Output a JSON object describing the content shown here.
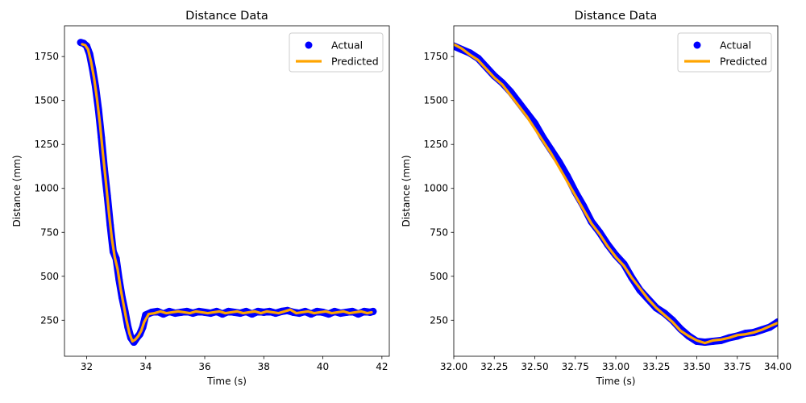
{
  "chart_data": [
    {
      "type": "scatter",
      "title": "Distance Data",
      "xlabel": "Time (s)",
      "ylabel": "Distance (mm)",
      "xlim": [
        31.25,
        42.25
      ],
      "ylim": [
        45,
        1925
      ],
      "xticks": [
        32,
        34,
        36,
        38,
        40,
        42
      ],
      "yticks": [
        250,
        500,
        750,
        1000,
        1250,
        1500,
        1750
      ],
      "xtick_labels": [
        "32",
        "34",
        "36",
        "38",
        "40",
        "42"
      ],
      "ytick_labels": [
        "250",
        "500",
        "750",
        "1000",
        "1250",
        "1500",
        "1750"
      ],
      "legend": {
        "placement": "top-right",
        "entries": [
          "Actual",
          "Predicted"
        ]
      },
      "grid": false,
      "series": [
        {
          "name": "Actual",
          "style": "points",
          "color": "#0000ff",
          "x": [
            31.8,
            31.9,
            32.0,
            32.1,
            32.2,
            32.3,
            32.4,
            32.5,
            32.6,
            32.7,
            32.8,
            32.9,
            33.0,
            33.1,
            33.2,
            33.3,
            33.4,
            33.5,
            33.6,
            33.7,
            33.8,
            33.9,
            34.0,
            34.2,
            34.4,
            34.6,
            34.8,
            35.0,
            35.2,
            35.4,
            35.6,
            35.8,
            36.0,
            36.2,
            36.4,
            36.6,
            36.8,
            37.0,
            37.2,
            37.4,
            37.6,
            37.8,
            38.0,
            38.2,
            38.4,
            38.6,
            38.8,
            39.0,
            39.2,
            39.4,
            39.6,
            39.8,
            40.0,
            40.2,
            40.4,
            40.6,
            40.8,
            41.0,
            41.2,
            41.4,
            41.6,
            41.7
          ],
          "y": [
            1830,
            1825,
            1810,
            1765,
            1680,
            1580,
            1450,
            1290,
            1110,
            960,
            790,
            640,
            600,
            480,
            380,
            300,
            210,
            150,
            125,
            150,
            170,
            210,
            280,
            295,
            300,
            285,
            300,
            290,
            295,
            300,
            290,
            300,
            295,
            290,
            300,
            285,
            300,
            295,
            290,
            300,
            285,
            300,
            295,
            300,
            290,
            300,
            305,
            295,
            290,
            300,
            285,
            300,
            295,
            285,
            300,
            290,
            295,
            300,
            285,
            300,
            295,
            300
          ]
        },
        {
          "name": "Predicted",
          "style": "line",
          "color": "#ffa500",
          "x": [
            31.85,
            31.95,
            32.05,
            32.15,
            32.25,
            32.35,
            32.45,
            32.55,
            32.65,
            32.75,
            32.85,
            32.95,
            33.05,
            33.15,
            33.25,
            33.35,
            33.45,
            33.55,
            33.65,
            33.75,
            33.85,
            33.95,
            34.1,
            34.3,
            34.5,
            34.7,
            34.9,
            35.1,
            35.3,
            35.5,
            35.7,
            35.9,
            36.1,
            36.3,
            36.5,
            36.7,
            36.9,
            37.1,
            37.3,
            37.5,
            37.7,
            37.9,
            38.1,
            38.3,
            38.5,
            38.7,
            38.9,
            39.1,
            39.3,
            39.5,
            39.7,
            39.9,
            40.1,
            40.3,
            40.5,
            40.7,
            40.9,
            41.1,
            41.3,
            41.5,
            41.65
          ],
          "y": [
            1820,
            1815,
            1790,
            1720,
            1630,
            1510,
            1370,
            1200,
            1040,
            870,
            720,
            610,
            540,
            430,
            340,
            250,
            175,
            130,
            140,
            160,
            190,
            240,
            285,
            290,
            300,
            290,
            295,
            300,
            295,
            290,
            300,
            295,
            290,
            295,
            300,
            290,
            295,
            300,
            290,
            295,
            300,
            290,
            300,
            295,
            290,
            300,
            310,
            290,
            295,
            300,
            290,
            295,
            300,
            290,
            295,
            300,
            290,
            295,
            300,
            290,
            295
          ]
        }
      ]
    },
    {
      "type": "scatter",
      "title": "Distance Data",
      "xlabel": "Time (s)",
      "ylabel": "Distance (mm)",
      "xlim": [
        32.0,
        34.0
      ],
      "ylim": [
        45,
        1925
      ],
      "xticks": [
        32.0,
        32.25,
        32.5,
        32.75,
        33.0,
        33.25,
        33.5,
        33.75,
        34.0
      ],
      "yticks": [
        250,
        500,
        750,
        1000,
        1250,
        1500,
        1750
      ],
      "xtick_labels": [
        "32.00",
        "32.25",
        "32.50",
        "32.75",
        "33.00",
        "33.25",
        "33.50",
        "33.75",
        "34.00"
      ],
      "ytick_labels": [
        "250",
        "500",
        "750",
        "1000",
        "1250",
        "1500",
        "1750"
      ],
      "legend": {
        "placement": "top-right",
        "entries": [
          "Actual",
          "Predicted"
        ]
      },
      "grid": false,
      "series": [
        {
          "name": "Actual",
          "style": "points",
          "color": "#0000ff",
          "x": [
            32.0,
            32.05,
            32.1,
            32.15,
            32.2,
            32.25,
            32.3,
            32.35,
            32.4,
            32.45,
            32.5,
            32.55,
            32.6,
            32.65,
            32.7,
            32.75,
            32.8,
            32.85,
            32.9,
            32.95,
            33.0,
            33.05,
            33.1,
            33.15,
            33.2,
            33.25,
            33.3,
            33.35,
            33.4,
            33.45,
            33.5,
            33.55,
            33.6,
            33.65,
            33.7,
            33.75,
            33.8,
            33.85,
            33.9,
            33.95,
            34.0
          ],
          "y": [
            1810,
            1790,
            1770,
            1740,
            1690,
            1640,
            1600,
            1550,
            1490,
            1430,
            1370,
            1290,
            1220,
            1150,
            1070,
            980,
            900,
            810,
            750,
            680,
            620,
            570,
            490,
            420,
            370,
            320,
            290,
            250,
            200,
            160,
            130,
            125,
            130,
            135,
            150,
            160,
            175,
            180,
            195,
            210,
            240
          ]
        },
        {
          "name": "Predicted",
          "style": "line",
          "color": "#ffa500",
          "x": [
            32.0,
            32.05,
            32.1,
            32.15,
            32.2,
            32.25,
            32.3,
            32.35,
            32.4,
            32.45,
            32.5,
            32.55,
            32.6,
            32.65,
            32.7,
            32.75,
            32.8,
            32.85,
            32.9,
            32.95,
            33.0,
            33.05,
            33.1,
            33.15,
            33.2,
            33.25,
            33.3,
            33.35,
            33.4,
            33.45,
            33.5,
            33.55,
            33.6,
            33.65,
            33.7,
            33.75,
            33.8,
            33.85,
            33.9,
            33.95,
            34.0
          ],
          "y": [
            1820,
            1795,
            1760,
            1730,
            1680,
            1630,
            1590,
            1530,
            1470,
            1410,
            1340,
            1270,
            1200,
            1120,
            1040,
            960,
            880,
            800,
            740,
            670,
            610,
            560,
            490,
            430,
            370,
            320,
            280,
            240,
            190,
            160,
            135,
            120,
            135,
            140,
            150,
            165,
            170,
            180,
            195,
            215,
            235
          ]
        }
      ]
    }
  ]
}
